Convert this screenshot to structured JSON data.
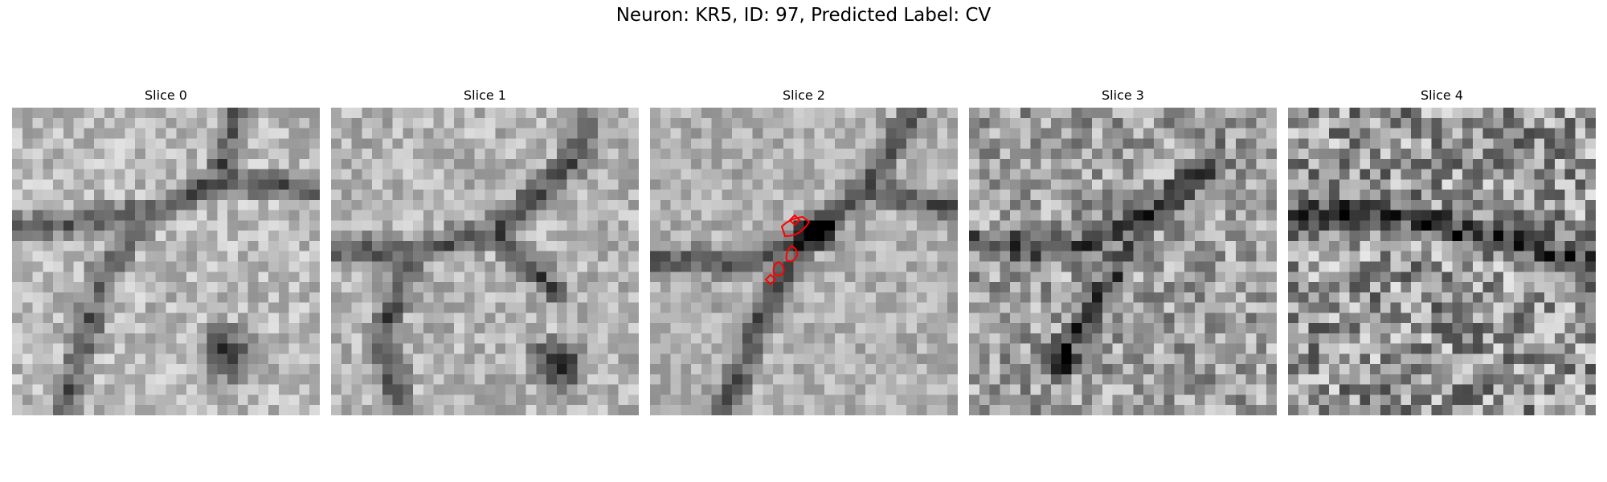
{
  "figure": {
    "title": "Neuron: KR5, ID: 97, Predicted Label: CV"
  },
  "slices": [
    {
      "title": "Slice 0",
      "has_contour": false
    },
    {
      "title": "Slice 1",
      "has_contour": false
    },
    {
      "title": "Slice 2",
      "has_contour": true
    },
    {
      "title": "Slice 3",
      "has_contour": false
    },
    {
      "title": "Slice 4",
      "has_contour": false
    }
  ],
  "colors": {
    "contour": "#ff0000"
  }
}
